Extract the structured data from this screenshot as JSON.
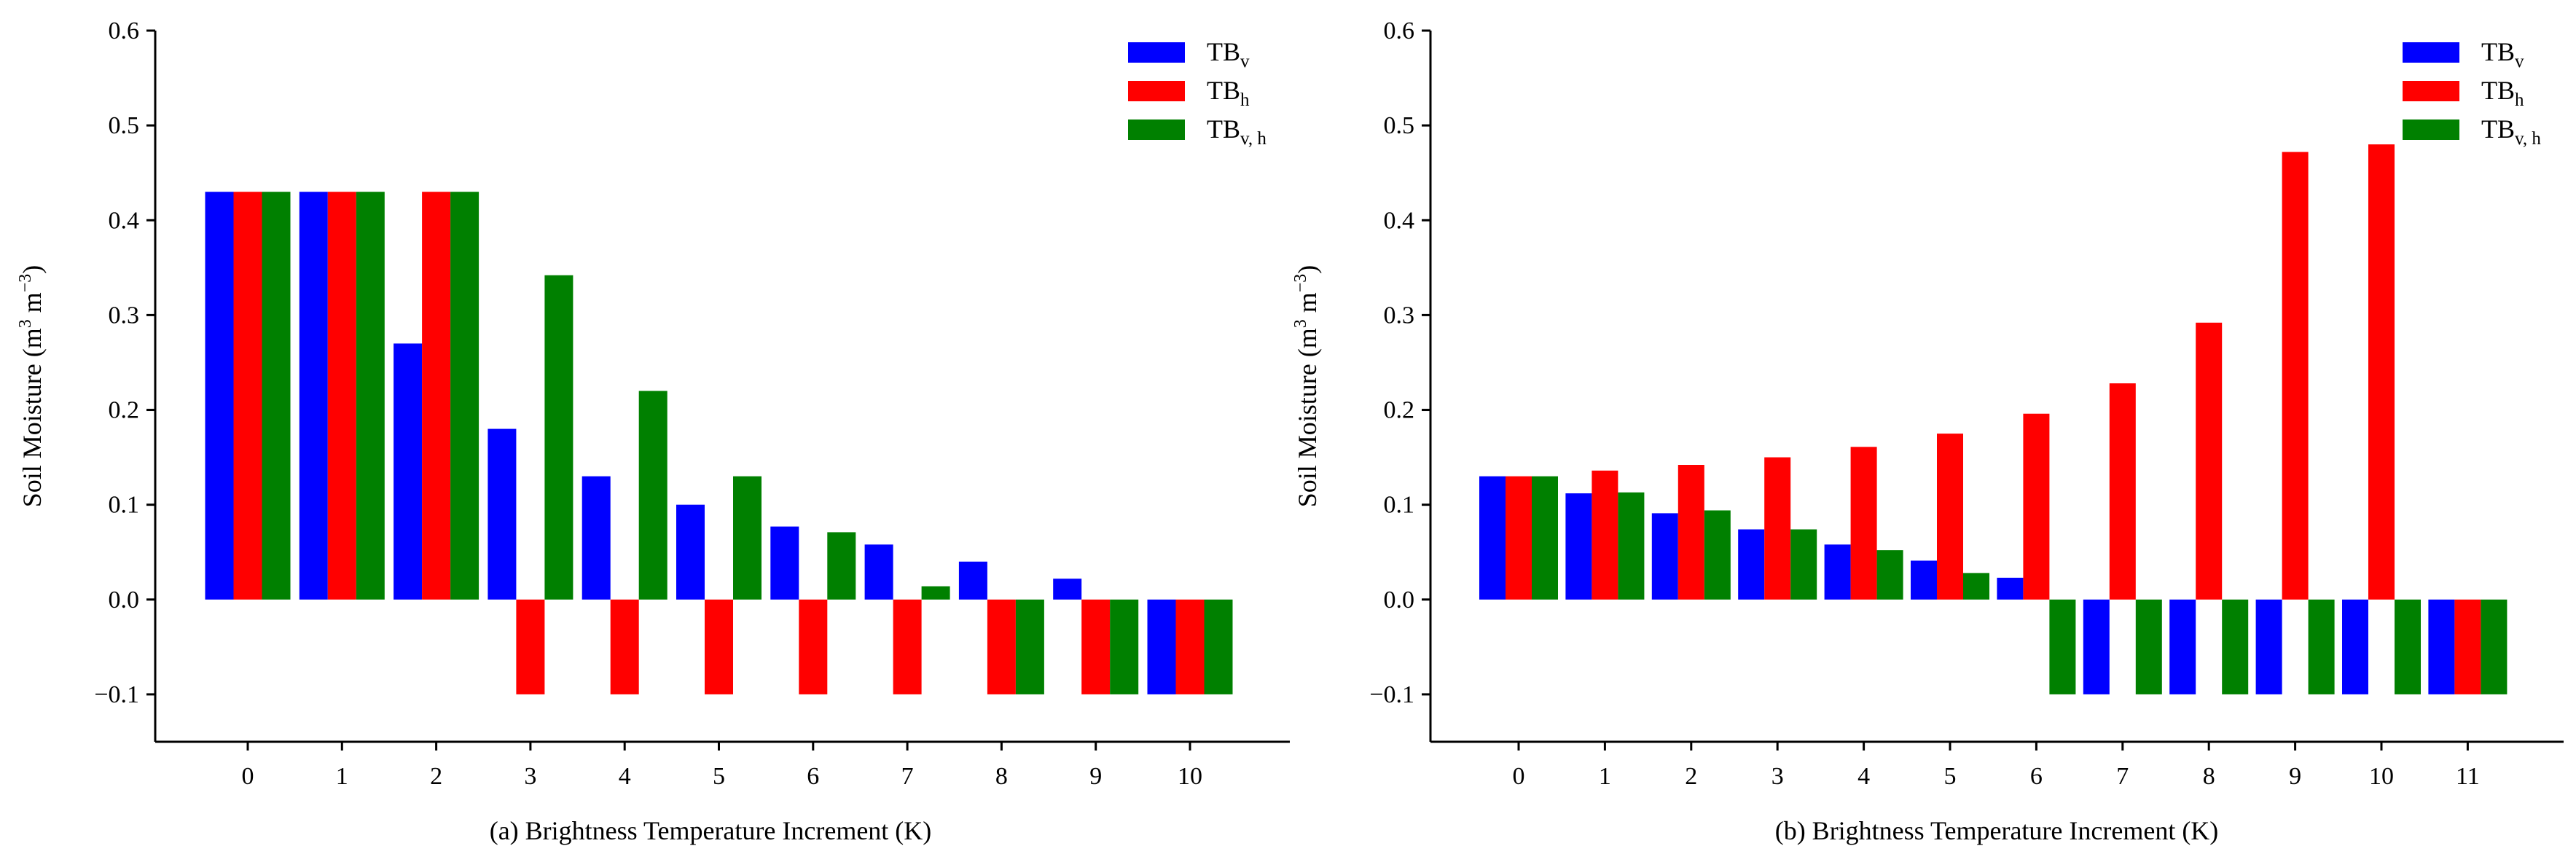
{
  "colors": {
    "series_v": "#0000ff",
    "series_h": "#ff0000",
    "series_vh": "#008000",
    "axis": "#000000",
    "background": "#ffffff"
  },
  "chart_data": [
    {
      "type": "bar",
      "caption": "(a)  Brightness Temperature Increment  (K)",
      "xlabel": "Brightness Temperature Increment  (K)",
      "ylabel_text": "Soil Moisture  (m",
      "ylabel_sup1": "3",
      "ylabel_mid": " m",
      "ylabel_sup2": "−3",
      "ylabel_end": ")",
      "ylim": [
        -0.15,
        0.6
      ],
      "yticks": [
        -0.1,
        0.0,
        0.1,
        0.2,
        0.3,
        0.4,
        0.5,
        0.6
      ],
      "ytick_labels": [
        "−0.1",
        "0.0",
        "0.1",
        "0.2",
        "0.3",
        "0.4",
        "0.5",
        "0.6"
      ],
      "categories": [
        "0",
        "1",
        "2",
        "3",
        "4",
        "5",
        "6",
        "7",
        "8",
        "9",
        "10"
      ],
      "legend_position": "top-right",
      "series": [
        {
          "name": "TBv",
          "base": "TB",
          "sub": "v",
          "color_key": "series_v",
          "values": [
            0.43,
            0.43,
            0.27,
            0.18,
            0.13,
            0.1,
            0.077,
            0.058,
            0.04,
            0.022,
            -0.1
          ]
        },
        {
          "name": "TBh",
          "base": "TB",
          "sub": "h",
          "color_key": "series_h",
          "values": [
            0.43,
            0.43,
            0.43,
            -0.1,
            -0.1,
            -0.1,
            -0.1,
            -0.1,
            -0.1,
            -0.1,
            -0.1
          ]
        },
        {
          "name": "TBv,h",
          "base": "TB",
          "sub": "v, h",
          "color_key": "series_vh",
          "values": [
            0.43,
            0.43,
            0.43,
            0.342,
            0.22,
            0.13,
            0.071,
            0.014,
            -0.1,
            -0.1,
            -0.1
          ]
        }
      ]
    },
    {
      "type": "bar",
      "caption": "(b)  Brightness Temperature Increment  (K)",
      "xlabel": "Brightness Temperature Increment  (K)",
      "ylabel_text": "Soil Moisture  (m",
      "ylabel_sup1": "3",
      "ylabel_mid": " m",
      "ylabel_sup2": "−3",
      "ylabel_end": ")",
      "ylim": [
        -0.15,
        0.6
      ],
      "yticks": [
        -0.1,
        0.0,
        0.1,
        0.2,
        0.3,
        0.4,
        0.5,
        0.6
      ],
      "ytick_labels": [
        "−0.1",
        "0.0",
        "0.1",
        "0.2",
        "0.3",
        "0.4",
        "0.5",
        "0.6"
      ],
      "categories": [
        "0",
        "1",
        "2",
        "3",
        "4",
        "5",
        "6",
        "7",
        "8",
        "9",
        "10",
        "11"
      ],
      "legend_position": "top-right",
      "series": [
        {
          "name": "TBv",
          "base": "TB",
          "sub": "v",
          "color_key": "series_v",
          "values": [
            0.13,
            0.112,
            0.091,
            0.074,
            0.058,
            0.041,
            0.023,
            -0.1,
            -0.1,
            -0.1,
            -0.1,
            -0.1
          ]
        },
        {
          "name": "TBh",
          "base": "TB",
          "sub": "h",
          "color_key": "series_h",
          "values": [
            0.13,
            0.136,
            0.142,
            0.15,
            0.161,
            0.175,
            0.196,
            0.228,
            0.292,
            0.472,
            0.48,
            -0.1
          ]
        },
        {
          "name": "TBv,h",
          "base": "TB",
          "sub": "v, h",
          "color_key": "series_vh",
          "values": [
            0.13,
            0.113,
            0.094,
            0.074,
            0.052,
            0.028,
            -0.1,
            -0.1,
            -0.1,
            -0.1,
            -0.1,
            -0.1
          ]
        }
      ]
    }
  ]
}
